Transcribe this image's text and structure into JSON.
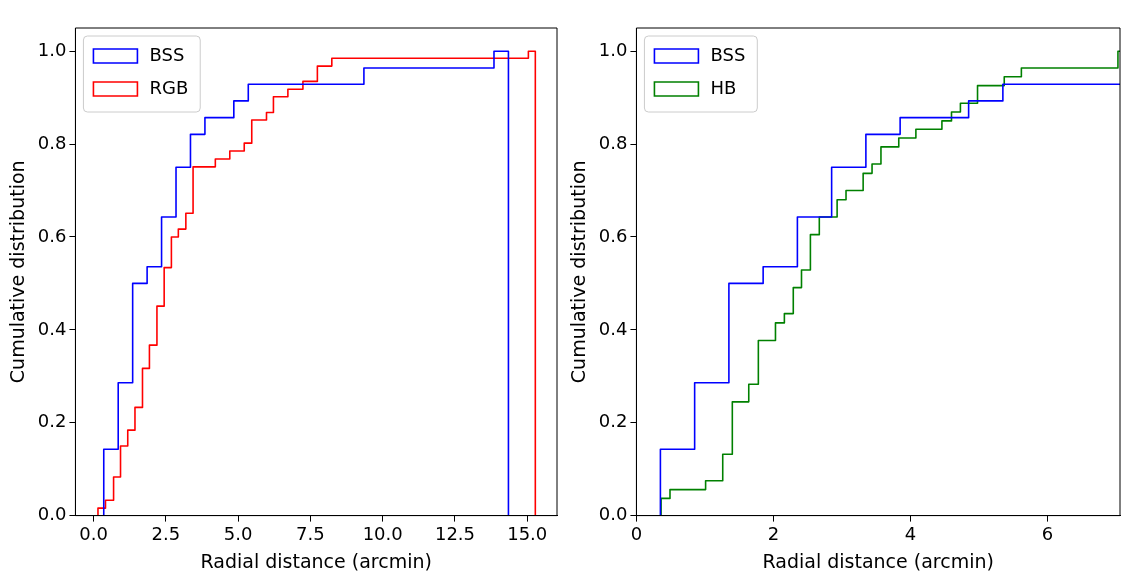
{
  "chart_data": [
    {
      "type": "step",
      "xlabel": "Radial distance (arcmin)",
      "ylabel": "Cumulative distribution",
      "xlim": [
        -0.63,
        16.03
      ],
      "xticks": [
        {
          "value": 0,
          "label": "0.0"
        },
        {
          "value": 2.5,
          "label": "2.5"
        },
        {
          "value": 5,
          "label": "5.0"
        },
        {
          "value": 7.5,
          "label": "7.5"
        },
        {
          "value": 10,
          "label": "10.0"
        },
        {
          "value": 12.5,
          "label": "12.5"
        },
        {
          "value": 15,
          "label": "15.0"
        }
      ],
      "ylim": [
        0,
        1.05
      ],
      "yticks": [
        {
          "value": 0,
          "label": "0.0"
        },
        {
          "value": 0.2,
          "label": "0.2"
        },
        {
          "value": 0.4,
          "label": "0.4"
        },
        {
          "value": 0.6,
          "label": "0.6"
        },
        {
          "value": 0.8,
          "label": "0.8"
        },
        {
          "value": 1,
          "label": "1.0"
        }
      ],
      "grid": false,
      "legend": "top left",
      "series": [
        {
          "name": "BSS",
          "color": "#0000ff",
          "x": [
            0.35,
            0.35,
            0.85,
            1.35,
            1.85,
            2.35,
            2.85,
            3.35,
            3.85,
            4.85,
            5.35,
            9.35,
            13.85,
            14.35
          ],
          "values": [
            0,
            0.143,
            0.286,
            0.5,
            0.536,
            0.643,
            0.75,
            0.821,
            0.857,
            0.893,
            0.929,
            0.964,
            1.0,
            0
          ]
        },
        {
          "name": "RGB",
          "color": "#ff0000",
          "x": [
            0.15,
            0.15,
            0.41,
            0.69,
            0.93,
            1.18,
            1.43,
            1.69,
            1.93,
            2.19,
            2.44,
            2.69,
            2.93,
            3.19,
            3.44,
            4.21,
            4.71,
            5.21,
            5.47,
            5.98,
            6.22,
            6.72,
            7.24,
            7.74,
            8.24,
            15.04,
            15.28
          ],
          "values": [
            0,
            0.016,
            0.033,
            0.083,
            0.15,
            0.184,
            0.233,
            0.317,
            0.367,
            0.451,
            0.534,
            0.6,
            0.617,
            0.651,
            0.751,
            0.768,
            0.785,
            0.802,
            0.852,
            0.868,
            0.902,
            0.918,
            0.935,
            0.968,
            0.985,
            1.0,
            0
          ]
        }
      ]
    },
    {
      "type": "step",
      "xlabel": "Radial distance (arcmin)",
      "ylabel": "Cumulative distribution",
      "xlim": [
        0,
        7.06
      ],
      "xticks": [
        0,
        2,
        4,
        6
      ],
      "ylim": [
        0,
        1.05
      ],
      "yticks": [
        {
          "value": 0,
          "label": "0.0"
        },
        {
          "value": 0.2,
          "label": "0.2"
        },
        {
          "value": 0.4,
          "label": "0.4"
        },
        {
          "value": 0.6,
          "label": "0.6"
        },
        {
          "value": 0.8,
          "label": "0.8"
        },
        {
          "value": 1,
          "label": "1.0"
        }
      ],
      "grid": false,
      "legend": "top left",
      "series": [
        {
          "name": "BSS",
          "color": "#0000ff",
          "x": [
            0.35,
            0.35,
            0.85,
            1.35,
            1.85,
            2.35,
            2.85,
            3.35,
            3.85,
            4.85,
            5.35,
            7.06
          ],
          "values": [
            0,
            0.143,
            0.286,
            0.5,
            0.536,
            0.643,
            0.75,
            0.821,
            0.857,
            0.893,
            0.929,
            0.929
          ]
        },
        {
          "name": "HB",
          "color": "#008000",
          "x": [
            0.36,
            0.36,
            0.49,
            1.01,
            1.26,
            1.4,
            1.64,
            1.78,
            2.03,
            2.16,
            2.29,
            2.41,
            2.54,
            2.67,
            2.93,
            3.06,
            3.31,
            3.44,
            3.57,
            3.83,
            4.08,
            4.46,
            4.6,
            4.73,
            4.98,
            5.37,
            5.62,
            7.03,
            7.06
          ],
          "values": [
            0,
            0.037,
            0.056,
            0.075,
            0.132,
            0.245,
            0.283,
            0.377,
            0.415,
            0.435,
            0.491,
            0.529,
            0.605,
            0.643,
            0.68,
            0.7,
            0.737,
            0.757,
            0.794,
            0.813,
            0.832,
            0.85,
            0.869,
            0.888,
            0.926,
            0.945,
            0.964,
            1.0,
            1.0
          ]
        }
      ]
    }
  ]
}
